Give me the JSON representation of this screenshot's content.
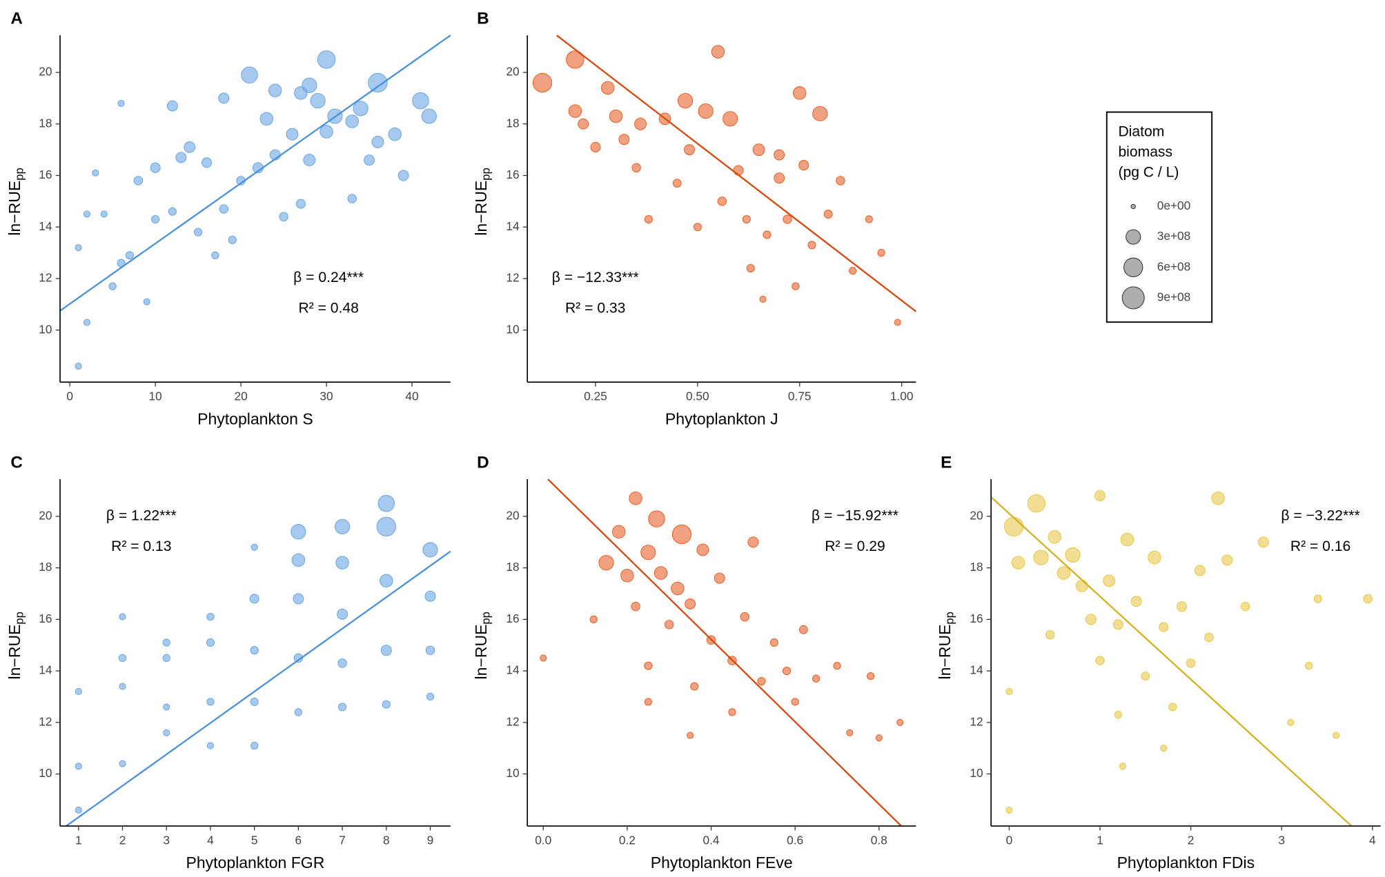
{
  "chart_data": [
    {
      "type": "scatter",
      "panel": "A",
      "xlabel": "Phytoplankton S",
      "ylabel": {
        "base": "ln−RUE",
        "sub": "pp"
      },
      "color": "#6aa6e4",
      "line_color": "#4a90d9",
      "beta_label": "β = 0.24***",
      "r2_label": "R² = 0.48",
      "xlim": [
        -1.14,
        44.5
      ],
      "ylim": [
        7.98,
        21.44
      ],
      "xticks": [
        0,
        10,
        20,
        30,
        40
      ],
      "yticks": [
        10,
        12,
        14,
        16,
        18,
        20
      ],
      "trend_line": {
        "x": [
          -1.14,
          44.5
        ],
        "y": [
          10.75,
          21.44
        ]
      },
      "series": [
        {
          "x": [
            1,
            1,
            2,
            2,
            3,
            4,
            5,
            6,
            6,
            7,
            8,
            9,
            10,
            10,
            12,
            13,
            14,
            15,
            16,
            18,
            18,
            20,
            21,
            22,
            23,
            24,
            25,
            26,
            27,
            28,
            29,
            30,
            30,
            31,
            33,
            34,
            35,
            36,
            36,
            38,
            39,
            41,
            42,
            17,
            19,
            27,
            33,
            24,
            12,
            28
          ],
          "values": [
            8.6,
            13.2,
            10.3,
            14.5,
            16.1,
            14.5,
            11.7,
            18.8,
            12.6,
            12.9,
            15.8,
            11.1,
            16.3,
            14.3,
            18.7,
            16.7,
            17.1,
            13.8,
            16.5,
            19.0,
            14.7,
            15.8,
            19.9,
            16.3,
            18.2,
            19.3,
            14.4,
            17.6,
            19.2,
            16.6,
            18.9,
            17.7,
            20.5,
            18.3,
            15.1,
            18.6,
            16.6,
            19.6,
            17.3,
            17.6,
            16.0,
            18.9,
            18.3,
            12.9,
            13.5,
            14.9,
            18.1,
            16.8,
            14.6,
            19.5
          ],
          "size": [
            10000000.0,
            10000000.0,
            10000000.0,
            10000000.0,
            10000000.0,
            10000000.0,
            20000000.0,
            10000000.0,
            30000000.0,
            30000000.0,
            50000000.0,
            10000000.0,
            80000000.0,
            30000000.0,
            100000000.0,
            100000000.0,
            120000000.0,
            30000000.0,
            80000000.0,
            100000000.0,
            50000000.0,
            50000000.0,
            400000000.0,
            100000000.0,
            200000000.0,
            200000000.0,
            50000000.0,
            150000000.0,
            200000000.0,
            150000000.0,
            300000000.0,
            200000000.0,
            500000000.0,
            300000000.0,
            50000000.0,
            300000000.0,
            100000000.0,
            600000000.0,
            150000000.0,
            200000000.0,
            100000000.0,
            400000000.0,
            300000000.0,
            20000000.0,
            30000000.0,
            60000000.0,
            200000000.0,
            100000000.0,
            30000000.0,
            300000000.0
          ]
        }
      ]
    },
    {
      "type": "scatter",
      "panel": "B",
      "xlabel": "Phytoplankton J",
      "ylabel": {
        "base": "ln−RUE",
        "sub": "pp"
      },
      "color": "#e8622a",
      "line_color": "#d9480f",
      "beta_label": "β = −12.33***",
      "r2_label": "R² = 0.33",
      "xlim": [
        0.083,
        1.035
      ],
      "ylim": [
        7.98,
        21.44
      ],
      "xticks": [
        0.25,
        {
          "value": 0.5,
          "label": "0.50"
        },
        0.75,
        {
          "value": 1,
          "label": "1.00"
        }
      ],
      "yticks": [
        10,
        12,
        14,
        16,
        18,
        20
      ],
      "trend_line": {
        "x": [
          0.155,
          1.035
        ],
        "y": [
          21.44,
          10.72
        ]
      },
      "series": [
        {
          "x": [
            0.12,
            0.2,
            0.2,
            0.22,
            0.25,
            0.28,
            0.3,
            0.32,
            0.35,
            0.36,
            0.38,
            0.42,
            0.45,
            0.47,
            0.48,
            0.5,
            0.52,
            0.55,
            0.56,
            0.58,
            0.6,
            0.62,
            0.63,
            0.65,
            0.67,
            0.7,
            0.72,
            0.74,
            0.75,
            0.76,
            0.78,
            0.8,
            0.82,
            0.85,
            0.88,
            0.92,
            0.95,
            0.99,
            0.66,
            0.7
          ],
          "values": [
            19.6,
            20.5,
            18.5,
            18.0,
            17.1,
            19.4,
            18.3,
            17.4,
            16.3,
            18.0,
            14.3,
            18.2,
            15.7,
            18.9,
            17.0,
            14.0,
            18.5,
            20.8,
            15.0,
            18.2,
            16.2,
            14.3,
            12.4,
            17.0,
            13.7,
            15.9,
            14.3,
            11.7,
            19.2,
            16.4,
            13.3,
            18.4,
            14.5,
            15.8,
            12.3,
            14.3,
            13.0,
            10.3,
            11.2,
            16.8
          ],
          "size": [
            600000000.0,
            500000000.0,
            200000000.0,
            100000000.0,
            80000000.0,
            200000000.0,
            200000000.0,
            100000000.0,
            50000000.0,
            150000000.0,
            30000000.0,
            150000000.0,
            40000000.0,
            300000000.0,
            100000000.0,
            30000000.0,
            300000000.0,
            200000000.0,
            50000000.0,
            300000000.0,
            80000000.0,
            30000000.0,
            30000000.0,
            150000000.0,
            30000000.0,
            100000000.0,
            50000000.0,
            20000000.0,
            200000000.0,
            80000000.0,
            30000000.0,
            300000000.0,
            40000000.0,
            50000000.0,
            20000000.0,
            20000000.0,
            20000000.0,
            10000000.0,
            10000000.0,
            100000000.0
          ]
        }
      ]
    },
    {
      "type": "scatter",
      "panel": "C",
      "xlabel": "Phytoplankton FGR",
      "ylabel": {
        "base": "ln−RUE",
        "sub": "pp"
      },
      "color": "#6aa6e4",
      "line_color": "#4a90d9",
      "beta_label": "β = 1.22***",
      "r2_label": "R² = 0.13",
      "xlim": [
        0.58,
        9.46
      ],
      "ylim": [
        7.98,
        21.44
      ],
      "xticks": [
        1,
        2,
        3,
        4,
        5,
        6,
        7,
        8,
        9
      ],
      "yticks": [
        10,
        12,
        14,
        16,
        18,
        20
      ],
      "trend_line": {
        "x": [
          0.72,
          9.46
        ],
        "y": [
          7.98,
          18.64
        ]
      },
      "series": [
        {
          "x": [
            1,
            1,
            1,
            2,
            2,
            2,
            2,
            3,
            3,
            3,
            3,
            4,
            4,
            4,
            4,
            5,
            5,
            5,
            5,
            5,
            6,
            6,
            6,
            6,
            6,
            7,
            7,
            7,
            7,
            7,
            8,
            8,
            8,
            8,
            8,
            9,
            9,
            9,
            9
          ],
          "values": [
            8.6,
            10.3,
            13.2,
            10.4,
            13.4,
            14.5,
            16.1,
            11.6,
            12.6,
            14.5,
            15.1,
            11.1,
            12.8,
            15.1,
            16.1,
            11.1,
            12.8,
            14.8,
            16.8,
            18.8,
            12.4,
            14.5,
            16.8,
            18.3,
            19.4,
            12.6,
            14.3,
            16.2,
            18.2,
            19.6,
            12.7,
            14.8,
            17.5,
            19.6,
            20.5,
            13.0,
            14.8,
            16.9,
            18.7
          ],
          "size": [
            10000000.0,
            10000000.0,
            10000000.0,
            10000000.0,
            10000000.0,
            20000000.0,
            10000000.0,
            10000000.0,
            10000000.0,
            20000000.0,
            20000000.0,
            10000000.0,
            20000000.0,
            30000000.0,
            20000000.0,
            20000000.0,
            30000000.0,
            30000000.0,
            60000000.0,
            10000000.0,
            20000000.0,
            50000000.0,
            100000000.0,
            200000000.0,
            300000000.0,
            30000000.0,
            50000000.0,
            100000000.0,
            200000000.0,
            300000000.0,
            30000000.0,
            100000000.0,
            200000000.0,
            600000000.0,
            400000000.0,
            20000000.0,
            50000000.0,
            100000000.0,
            300000000.0
          ]
        }
      ]
    },
    {
      "type": "scatter",
      "panel": "D",
      "xlabel": "Phytoplankton FEve",
      "ylabel": {
        "base": "ln−RUE",
        "sub": "pp"
      },
      "color": "#e8622a",
      "line_color": "#d9480f",
      "beta_label": "β = −15.92***",
      "r2_label": "R² = 0.29",
      "xlim": [
        -0.038,
        0.888
      ],
      "ylim": [
        7.98,
        21.44
      ],
      "xticks": [
        {
          "value": 0,
          "label": "0.0"
        },
        0.2,
        0.4,
        0.6,
        0.8
      ],
      "yticks": [
        10,
        12,
        14,
        16,
        18,
        20
      ],
      "trend_line": {
        "x": [
          0.011,
          0.853
        ],
        "y": [
          21.44,
          7.98
        ]
      },
      "series": [
        {
          "x": [
            0.0,
            0.12,
            0.15,
            0.18,
            0.2,
            0.22,
            0.22,
            0.25,
            0.25,
            0.27,
            0.28,
            0.3,
            0.32,
            0.33,
            0.35,
            0.36,
            0.38,
            0.4,
            0.42,
            0.45,
            0.48,
            0.5,
            0.52,
            0.55,
            0.58,
            0.6,
            0.62,
            0.65,
            0.7,
            0.73,
            0.78,
            0.8,
            0.85,
            0.45,
            0.35,
            0.25
          ],
          "values": [
            14.5,
            16.0,
            18.2,
            19.4,
            17.7,
            20.7,
            16.5,
            18.6,
            14.2,
            19.9,
            17.8,
            15.8,
            17.2,
            19.3,
            16.6,
            13.4,
            18.7,
            15.2,
            17.6,
            14.4,
            16.1,
            19.0,
            13.6,
            15.1,
            14.0,
            12.8,
            15.6,
            13.7,
            14.2,
            11.6,
            13.8,
            11.4,
            12.0,
            12.4,
            11.5,
            12.8
          ],
          "size": [
            10000000.0,
            20000000.0,
            300000000.0,
            200000000.0,
            200000000.0,
            200000000.0,
            50000000.0,
            300000000.0,
            30000000.0,
            400000000.0,
            200000000.0,
            50000000.0,
            200000000.0,
            600000000.0,
            100000000.0,
            30000000.0,
            150000000.0,
            50000000.0,
            100000000.0,
            50000000.0,
            50000000.0,
            100000000.0,
            30000000.0,
            30000000.0,
            30000000.0,
            20000000.0,
            40000000.0,
            20000000.0,
            20000000.0,
            10000000.0,
            20000000.0,
            10000000.0,
            10000000.0,
            20000000.0,
            10000000.0,
            20000000.0
          ]
        }
      ]
    },
    {
      "type": "scatter",
      "panel": "E",
      "xlabel": "Phytoplankton FDis",
      "ylabel": {
        "base": "ln−RUE",
        "sub": "pp"
      },
      "color": "#e8c84a",
      "line_color": "#d4b21f",
      "beta_label": "β = −3.22***",
      "r2_label": "R² = 0.16",
      "xlim": [
        -0.2,
        4.09
      ],
      "ylim": [
        7.98,
        21.44
      ],
      "xticks": [
        0,
        1,
        2,
        3,
        4
      ],
      "yticks": [
        10,
        12,
        14,
        16,
        18,
        20
      ],
      "trend_line": {
        "x": [
          -0.2,
          3.77
        ],
        "y": [
          20.75,
          7.98
        ]
      },
      "series": [
        {
          "x": [
            0,
            0,
            0.05,
            0.1,
            0.3,
            0.35,
            0.45,
            0.5,
            0.6,
            0.7,
            0.8,
            0.9,
            1.0,
            1.0,
            1.1,
            1.2,
            1.2,
            1.3,
            1.4,
            1.5,
            1.6,
            1.7,
            1.8,
            1.9,
            2.0,
            2.1,
            2.2,
            2.3,
            2.4,
            2.6,
            2.8,
            3.1,
            3.3,
            3.4,
            3.6,
            3.95,
            1.25,
            1.7
          ],
          "values": [
            8.6,
            13.2,
            19.6,
            18.2,
            20.5,
            18.4,
            15.4,
            19.2,
            17.8,
            18.5,
            17.3,
            16.0,
            20.8,
            14.4,
            17.5,
            12.3,
            15.8,
            19.1,
            16.7,
            13.8,
            18.4,
            15.7,
            12.6,
            16.5,
            14.3,
            17.9,
            15.3,
            20.7,
            18.3,
            16.5,
            19.0,
            12.0,
            14.2,
            16.8,
            11.5,
            16.8,
            10.3,
            11.0
          ],
          "size": [
            10000000.0,
            10000000.0,
            600000000.0,
            200000000.0,
            500000000.0,
            300000000.0,
            50000000.0,
            200000000.0,
            200000000.0,
            300000000.0,
            150000000.0,
            100000000.0,
            100000000.0,
            50000000.0,
            150000000.0,
            20000000.0,
            80000000.0,
            200000000.0,
            100000000.0,
            40000000.0,
            200000000.0,
            60000000.0,
            30000000.0,
            80000000.0,
            50000000.0,
            100000000.0,
            50000000.0,
            200000000.0,
            100000000.0,
            50000000.0,
            100000000.0,
            10000000.0,
            20000000.0,
            30000000.0,
            10000000.0,
            50000000.0,
            10000000.0,
            10000000.0
          ]
        }
      ]
    }
  ],
  "size_legend": {
    "title": [
      "Diatom",
      "biomass",
      "(pg C / L)"
    ],
    "values": [
      {
        "value": 0,
        "label": "0e+00"
      },
      {
        "value": 300000000,
        "label": "3e+08"
      },
      {
        "value": 600000000,
        "label": "6e+08"
      },
      {
        "value": 900000000,
        "label": "9e+08"
      }
    ]
  }
}
